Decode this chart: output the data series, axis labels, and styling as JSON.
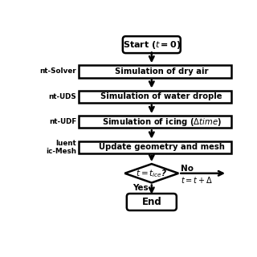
{
  "bg_color": "#ffffff",
  "box_color": "#ffffff",
  "box_edge_color": "#000000",
  "arrow_color": "#000000",
  "text_color": "#000000",
  "steps": [
    "Simulation of dry air",
    "Simulation of water drople",
    "Simulation of icing (Δtime)",
    "Update geometry and mesh"
  ],
  "left_labels": [
    "nt-Solver",
    "nt-UDS",
    "nt-UDF",
    "luent\nic-Mesh"
  ],
  "lw": 1.8
}
